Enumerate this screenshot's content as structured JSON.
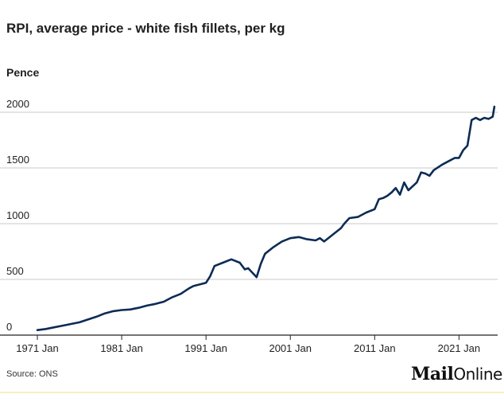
{
  "header": {
    "title": "RPI, average price - white fish fillets, per kg",
    "ylabel": "Pence"
  },
  "footer": {
    "source": "Source: ONS",
    "brand_bold": "Mail",
    "brand_light": "Online"
  },
  "colors": {
    "line": "#0c2b55",
    "grid": "#c8c8c8",
    "axis": "#222222"
  },
  "chart_data": {
    "type": "line",
    "title": "RPI, average price - white fish fillets, per kg",
    "ylabel": "Pence",
    "xlabel": "",
    "ylim": [
      0,
      2050
    ],
    "xlim": [
      1971.0,
      2025.3
    ],
    "y_ticks": [
      0,
      500,
      1000,
      1500,
      2000
    ],
    "x_tick_labels": [
      "1971 Jan",
      "1981 Jan",
      "1991 Jan",
      "2001 Jan",
      "2011 Jan",
      "2021 Jan"
    ],
    "x_tick_values": [
      1971,
      1981,
      1991,
      2001,
      2011,
      2021
    ],
    "grid": true,
    "series": [
      {
        "name": "",
        "x": [
          1971.0,
          1972.0,
          1973.0,
          1974.0,
          1975.0,
          1976.0,
          1977.0,
          1978.0,
          1979.0,
          1980.0,
          1981.0,
          1982.0,
          1983.0,
          1984.0,
          1985.0,
          1986.0,
          1987.0,
          1988.0,
          1989.0,
          1989.5,
          1990.0,
          1990.5,
          1991.0,
          1991.5,
          1992.0,
          1993.0,
          1994.0,
          1995.0,
          1995.6,
          1996.0,
          1996.5,
          1997.0,
          1997.5,
          1998.0,
          1999.0,
          2000.0,
          2001.0,
          2002.0,
          2003.0,
          2004.0,
          2004.5,
          2005.0,
          2006.0,
          2007.0,
          2007.4,
          2008.0,
          2009.0,
          2010.0,
          2011.0,
          2011.5,
          2012.0,
          2012.5,
          2013.0,
          2013.5,
          2014.0,
          2014.5,
          2015.0,
          2016.0,
          2016.5,
          2017.0,
          2017.5,
          2018.0,
          2019.0,
          2020.0,
          2020.5,
          2021.0,
          2021.5,
          2022.0,
          2022.5,
          2023.0,
          2023.5,
          2024.0,
          2024.5,
          2025.0,
          2025.2
        ],
        "values": [
          45,
          55,
          70,
          85,
          100,
          115,
          140,
          165,
          195,
          215,
          225,
          230,
          245,
          265,
          280,
          300,
          340,
          370,
          420,
          440,
          450,
          460,
          470,
          530,
          620,
          650,
          680,
          650,
          590,
          600,
          560,
          520,
          640,
          730,
          790,
          840,
          870,
          880,
          860,
          850,
          870,
          840,
          900,
          960,
          1000,
          1050,
          1060,
          1100,
          1130,
          1220,
          1230,
          1250,
          1280,
          1320,
          1260,
          1370,
          1300,
          1370,
          1460,
          1450,
          1430,
          1480,
          1530,
          1570,
          1590,
          1590,
          1660,
          1700,
          1930,
          1950,
          1930,
          1950,
          1940,
          1960,
          2050
        ]
      }
    ]
  }
}
